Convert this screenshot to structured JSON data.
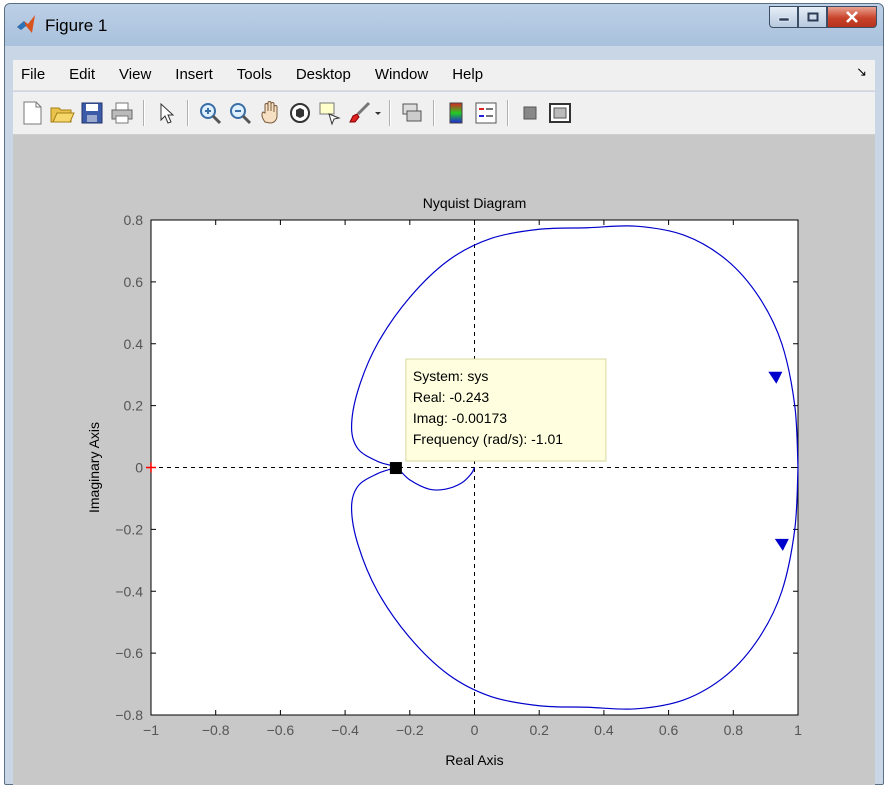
{
  "window": {
    "title": "Figure 1"
  },
  "menu": [
    "File",
    "Edit",
    "View",
    "Insert",
    "Tools",
    "Desktop",
    "Window",
    "Help"
  ],
  "toolbar": {
    "tools": [
      "new-figure",
      "open-file",
      "save-figure",
      "print-figure",
      "edit-plot",
      "zoom-in",
      "zoom-out",
      "pan",
      "rotate-3d",
      "data-cursor",
      "brush",
      "brush-menu",
      "link-plot",
      "insert-colorbar",
      "insert-legend",
      "hide-plot-tools",
      "show-plot-tools"
    ]
  },
  "colors": {
    "curve": "#0000cc",
    "marker": "#000000",
    "critical_point": "#ff0000",
    "datatip_bg": "#ffffe0"
  },
  "chart_data": {
    "type": "line",
    "title": "Nyquist Diagram",
    "xlabel": "Real Axis",
    "ylabel": "Imaginary Axis",
    "xlim": [
      -1,
      1
    ],
    "ylim": [
      -0.8,
      0.8
    ],
    "xticks": [
      "-1",
      "-0.8",
      "-0.6",
      "-0.4",
      "-0.2",
      "0",
      "0.2",
      "0.4",
      "0.6",
      "0.8",
      "1"
    ],
    "yticks": [
      "0.8",
      "0.6",
      "0.4",
      "0.2",
      "0",
      "-0.2",
      "-0.4",
      "-0.6",
      "-0.8"
    ],
    "series": [
      {
        "x": [
          1.0,
          0.99,
          0.95,
          0.88,
          0.78,
          0.65,
          0.5,
          0.35,
          0.2,
          0.05,
          -0.08,
          -0.2,
          -0.3,
          -0.36,
          -0.38,
          -0.36,
          -0.3,
          -0.243,
          -0.2,
          -0.14,
          -0.09,
          -0.04,
          -0.01,
          0.0
        ],
        "y": [
          0.0,
          0.2,
          0.4,
          0.55,
          0.67,
          0.75,
          0.78,
          0.775,
          0.77,
          0.74,
          0.67,
          0.55,
          0.4,
          0.25,
          0.13,
          0.06,
          0.02,
          0.0,
          -0.04,
          -0.07,
          -0.07,
          -0.05,
          -0.02,
          0.0
        ]
      },
      {
        "x": [
          1.0,
          0.99,
          0.95,
          0.88,
          0.78,
          0.65,
          0.5,
          0.35,
          0.2,
          0.05,
          -0.08,
          -0.2,
          -0.3,
          -0.36,
          -0.38,
          -0.36,
          -0.3,
          -0.243
        ],
        "y": [
          0.0,
          -0.2,
          -0.4,
          -0.55,
          -0.67,
          -0.75,
          -0.78,
          -0.775,
          -0.77,
          -0.74,
          -0.67,
          -0.55,
          -0.4,
          -0.25,
          -0.13,
          -0.06,
          -0.02,
          0.0
        ]
      }
    ],
    "arrows": [
      {
        "x": 0.93,
        "y": 0.29,
        "direction": "down"
      },
      {
        "x": 0.95,
        "y": -0.25,
        "direction": "down"
      }
    ],
    "critical_point": {
      "x": -1,
      "y": 0
    },
    "datatip": {
      "x": -0.243,
      "y": -0.00173,
      "lines": [
        "System: sys",
        "Real: -0.243",
        "Imag: -0.00173",
        "Frequency (rad/s): -1.01"
      ]
    }
  }
}
